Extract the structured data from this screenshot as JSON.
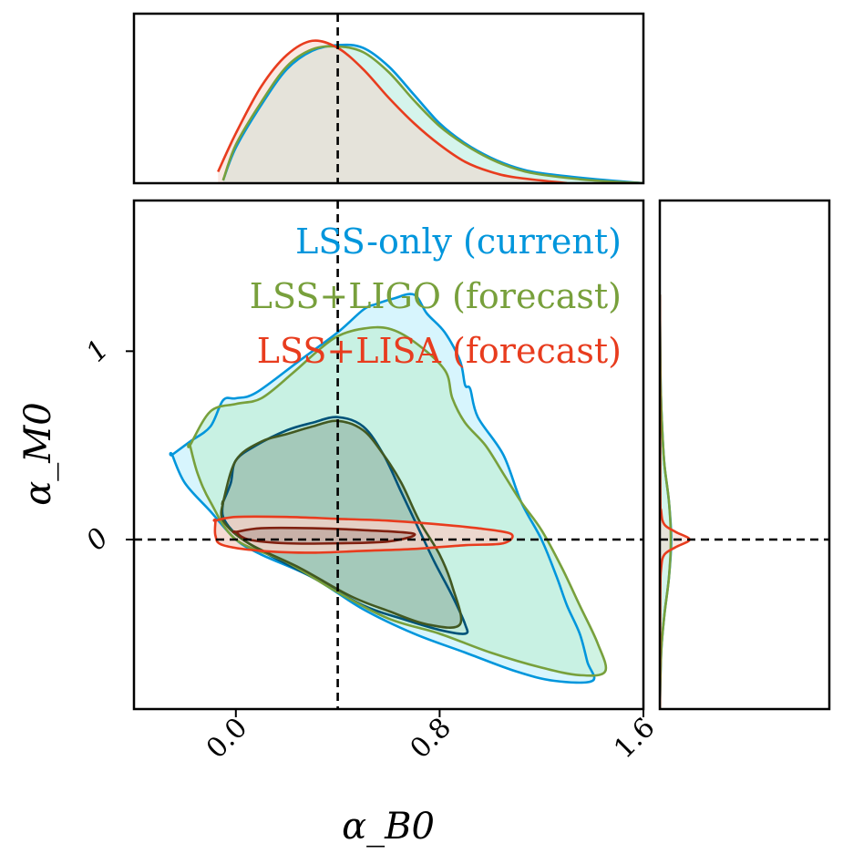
{
  "colors": {
    "lss_only": "#0096dc",
    "lss_ligo": "#78a03c",
    "lss_lisa": "#e83c1e",
    "frame": "#000000"
  },
  "chart_data": {
    "type": "scatter",
    "subtype": "corner-plot-contours",
    "xlabel": "α_B0",
    "ylabel": "α_M0",
    "xlim": [
      -0.4,
      1.6
    ],
    "ylim": [
      -0.9,
      1.8
    ],
    "xticks": [
      0.0,
      0.8,
      1.6
    ],
    "xtick_labels": [
      "0.0",
      "0.8",
      "1.6"
    ],
    "yticks": [
      0,
      1
    ],
    "ytick_labels": [
      "0",
      "1"
    ],
    "fiducial": {
      "alpha_B0": 0.4,
      "alpha_M0": 0.0
    },
    "legend": {
      "placement": "top-right",
      "entries": [
        {
          "label": "LSS-only (current)",
          "color": "#0096dc"
        },
        {
          "label": "LSS+LIGO (forecast)",
          "color": "#78a03c"
        },
        {
          "label": "LSS+LISA (forecast)",
          "color": "#e83c1e"
        }
      ]
    },
    "series": [
      {
        "name": "LSS-only (current)",
        "color": "#0096dc",
        "fill": "#cdf3fc",
        "contour_95": [
          [
            -0.25,
            0.45
          ],
          [
            -0.18,
            0.52
          ],
          [
            -0.1,
            0.6
          ],
          [
            -0.05,
            0.74
          ],
          [
            0.0,
            0.75
          ],
          [
            0.08,
            0.78
          ],
          [
            0.25,
            0.95
          ],
          [
            0.4,
            1.1
          ],
          [
            0.5,
            1.22
          ],
          [
            0.55,
            1.25
          ],
          [
            0.62,
            1.28
          ],
          [
            0.7,
            1.3
          ],
          [
            0.75,
            1.2
          ],
          [
            0.82,
            1.1
          ],
          [
            0.88,
            0.95
          ],
          [
            0.9,
            0.82
          ],
          [
            0.92,
            0.8
          ],
          [
            0.95,
            0.65
          ],
          [
            1.05,
            0.45
          ],
          [
            1.12,
            0.2
          ],
          [
            1.2,
            0.0
          ],
          [
            1.26,
            -0.2
          ],
          [
            1.3,
            -0.35
          ],
          [
            1.35,
            -0.5
          ],
          [
            1.38,
            -0.65
          ],
          [
            1.4,
            -0.75
          ],
          [
            1.25,
            -0.75
          ],
          [
            1.1,
            -0.7
          ],
          [
            0.9,
            -0.6
          ],
          [
            0.7,
            -0.5
          ],
          [
            0.5,
            -0.37
          ],
          [
            0.3,
            -0.2
          ],
          [
            0.1,
            -0.08
          ],
          [
            0.0,
            0.0
          ],
          [
            -0.1,
            0.15
          ],
          [
            -0.2,
            0.3
          ],
          [
            -0.25,
            0.45
          ]
        ],
        "contour_68": [
          [
            -0.05,
            0.2
          ],
          [
            -0.02,
            0.3
          ],
          [
            0.0,
            0.42
          ],
          [
            0.08,
            0.5
          ],
          [
            0.2,
            0.58
          ],
          [
            0.3,
            0.62
          ],
          [
            0.4,
            0.65
          ],
          [
            0.5,
            0.6
          ],
          [
            0.58,
            0.45
          ],
          [
            0.65,
            0.25
          ],
          [
            0.72,
            0.05
          ],
          [
            0.78,
            -0.12
          ],
          [
            0.85,
            -0.3
          ],
          [
            0.9,
            -0.45
          ],
          [
            0.9,
            -0.5
          ],
          [
            0.8,
            -0.48
          ],
          [
            0.65,
            -0.42
          ],
          [
            0.5,
            -0.35
          ],
          [
            0.3,
            -0.2
          ],
          [
            0.1,
            -0.06
          ],
          [
            0.0,
            0.03
          ],
          [
            -0.05,
            0.12
          ],
          [
            -0.05,
            0.2
          ]
        ],
        "marginal_x": [
          [
            -0.05,
            0.02
          ],
          [
            0.0,
            0.25
          ],
          [
            0.1,
            0.55
          ],
          [
            0.2,
            0.8
          ],
          [
            0.3,
            0.93
          ],
          [
            0.4,
            0.97
          ],
          [
            0.5,
            0.95
          ],
          [
            0.6,
            0.82
          ],
          [
            0.7,
            0.62
          ],
          [
            0.8,
            0.42
          ],
          [
            0.9,
            0.28
          ],
          [
            1.0,
            0.18
          ],
          [
            1.1,
            0.11
          ],
          [
            1.2,
            0.07
          ],
          [
            1.4,
            0.03
          ],
          [
            1.6,
            0.0
          ]
        ],
        "marginal_y": [
          [
            -0.9,
            0.0
          ],
          [
            -0.6,
            0.03
          ],
          [
            -0.4,
            0.1
          ],
          [
            -0.2,
            0.2
          ],
          [
            0.0,
            0.25
          ],
          [
            0.2,
            0.2
          ],
          [
            0.4,
            0.1
          ],
          [
            0.6,
            0.05
          ],
          [
            0.8,
            0.02
          ],
          [
            1.0,
            0.01
          ],
          [
            1.3,
            0.0
          ]
        ]
      },
      {
        "name": "LSS+LIGO (forecast)",
        "color": "#78a03c",
        "fill": "#c4f0dc",
        "contour_95": [
          [
            -0.18,
            0.5
          ],
          [
            -0.1,
            0.68
          ],
          [
            0.0,
            0.72
          ],
          [
            0.1,
            0.75
          ],
          [
            0.22,
            0.88
          ],
          [
            0.32,
            1.0
          ],
          [
            0.4,
            1.08
          ],
          [
            0.5,
            1.12
          ],
          [
            0.6,
            1.12
          ],
          [
            0.7,
            1.05
          ],
          [
            0.82,
            0.9
          ],
          [
            0.85,
            0.75
          ],
          [
            0.9,
            0.62
          ],
          [
            0.98,
            0.5
          ],
          [
            1.05,
            0.35
          ],
          [
            1.12,
            0.2
          ],
          [
            1.2,
            0.05
          ],
          [
            1.28,
            -0.15
          ],
          [
            1.35,
            -0.35
          ],
          [
            1.42,
            -0.55
          ],
          [
            1.45,
            -0.7
          ],
          [
            1.35,
            -0.72
          ],
          [
            1.2,
            -0.68
          ],
          [
            1.0,
            -0.6
          ],
          [
            0.8,
            -0.5
          ],
          [
            0.6,
            -0.42
          ],
          [
            0.4,
            -0.28
          ],
          [
            0.2,
            -0.12
          ],
          [
            0.0,
            0.0
          ],
          [
            -0.1,
            0.2
          ],
          [
            -0.15,
            0.35
          ],
          [
            -0.18,
            0.5
          ]
        ],
        "contour_68": [
          [
            -0.05,
            0.2
          ],
          [
            0.0,
            0.42
          ],
          [
            0.1,
            0.52
          ],
          [
            0.2,
            0.56
          ],
          [
            0.3,
            0.6
          ],
          [
            0.4,
            0.63
          ],
          [
            0.5,
            0.58
          ],
          [
            0.58,
            0.45
          ],
          [
            0.65,
            0.3
          ],
          [
            0.72,
            0.1
          ],
          [
            0.8,
            -0.08
          ],
          [
            0.85,
            -0.25
          ],
          [
            0.88,
            -0.45
          ],
          [
            0.75,
            -0.45
          ],
          [
            0.6,
            -0.38
          ],
          [
            0.45,
            -0.3
          ],
          [
            0.25,
            -0.15
          ],
          [
            0.05,
            -0.02
          ],
          [
            -0.05,
            0.1
          ],
          [
            -0.05,
            0.2
          ]
        ],
        "marginal_x": [
          [
            -0.05,
            0.02
          ],
          [
            0.0,
            0.27
          ],
          [
            0.1,
            0.57
          ],
          [
            0.2,
            0.82
          ],
          [
            0.3,
            0.94
          ],
          [
            0.4,
            0.96
          ],
          [
            0.5,
            0.92
          ],
          [
            0.6,
            0.78
          ],
          [
            0.7,
            0.58
          ],
          [
            0.8,
            0.4
          ],
          [
            0.9,
            0.27
          ],
          [
            1.0,
            0.17
          ],
          [
            1.1,
            0.1
          ],
          [
            1.2,
            0.06
          ],
          [
            1.4,
            0.02
          ],
          [
            1.6,
            0.0
          ]
        ],
        "marginal_y": [
          [
            -0.9,
            0.0
          ],
          [
            -0.6,
            0.03
          ],
          [
            -0.4,
            0.1
          ],
          [
            -0.2,
            0.2
          ],
          [
            0.0,
            0.24
          ],
          [
            0.2,
            0.2
          ],
          [
            0.4,
            0.1
          ],
          [
            0.6,
            0.05
          ],
          [
            0.8,
            0.02
          ],
          [
            1.0,
            0.01
          ],
          [
            1.3,
            0.0
          ]
        ]
      },
      {
        "name": "LSS+LISA (forecast)",
        "color": "#e83c1e",
        "fill": "#f5d2c8",
        "contour_95": [
          [
            -0.08,
            0.1
          ],
          [
            0.0,
            0.12
          ],
          [
            0.2,
            0.12
          ],
          [
            0.4,
            0.11
          ],
          [
            0.6,
            0.1
          ],
          [
            0.8,
            0.08
          ],
          [
            0.95,
            0.06
          ],
          [
            1.08,
            0.03
          ],
          [
            1.05,
            -0.02
          ],
          [
            0.9,
            -0.03
          ],
          [
            0.7,
            -0.05
          ],
          [
            0.5,
            -0.06
          ],
          [
            0.3,
            -0.07
          ],
          [
            0.1,
            -0.06
          ],
          [
            -0.05,
            -0.03
          ],
          [
            -0.08,
            0.02
          ],
          [
            -0.08,
            0.1
          ]
        ],
        "contour_68": [
          [
            0.0,
            0.04
          ],
          [
            0.1,
            0.06
          ],
          [
            0.3,
            0.06
          ],
          [
            0.5,
            0.05
          ],
          [
            0.7,
            0.03
          ],
          [
            0.6,
            -0.01
          ],
          [
            0.4,
            -0.02
          ],
          [
            0.2,
            -0.02
          ],
          [
            0.05,
            0.0
          ],
          [
            0.0,
            0.04
          ]
        ],
        "marginal_x": [
          [
            -0.07,
            0.08
          ],
          [
            0.0,
            0.35
          ],
          [
            0.1,
            0.68
          ],
          [
            0.2,
            0.9
          ],
          [
            0.3,
            1.0
          ],
          [
            0.4,
            0.95
          ],
          [
            0.5,
            0.8
          ],
          [
            0.6,
            0.6
          ],
          [
            0.7,
            0.42
          ],
          [
            0.8,
            0.27
          ],
          [
            0.9,
            0.15
          ],
          [
            1.0,
            0.08
          ],
          [
            1.1,
            0.04
          ],
          [
            1.3,
            0.0
          ]
        ],
        "marginal_y": [
          [
            -0.9,
            0.0
          ],
          [
            -0.3,
            0.01
          ],
          [
            -0.15,
            0.03
          ],
          [
            -0.08,
            0.1
          ],
          [
            -0.04,
            0.35
          ],
          [
            0.0,
            0.65
          ],
          [
            0.04,
            0.35
          ],
          [
            0.08,
            0.1
          ],
          [
            0.15,
            0.03
          ],
          [
            0.3,
            0.01
          ],
          [
            1.3,
            0.0
          ]
        ]
      }
    ]
  }
}
